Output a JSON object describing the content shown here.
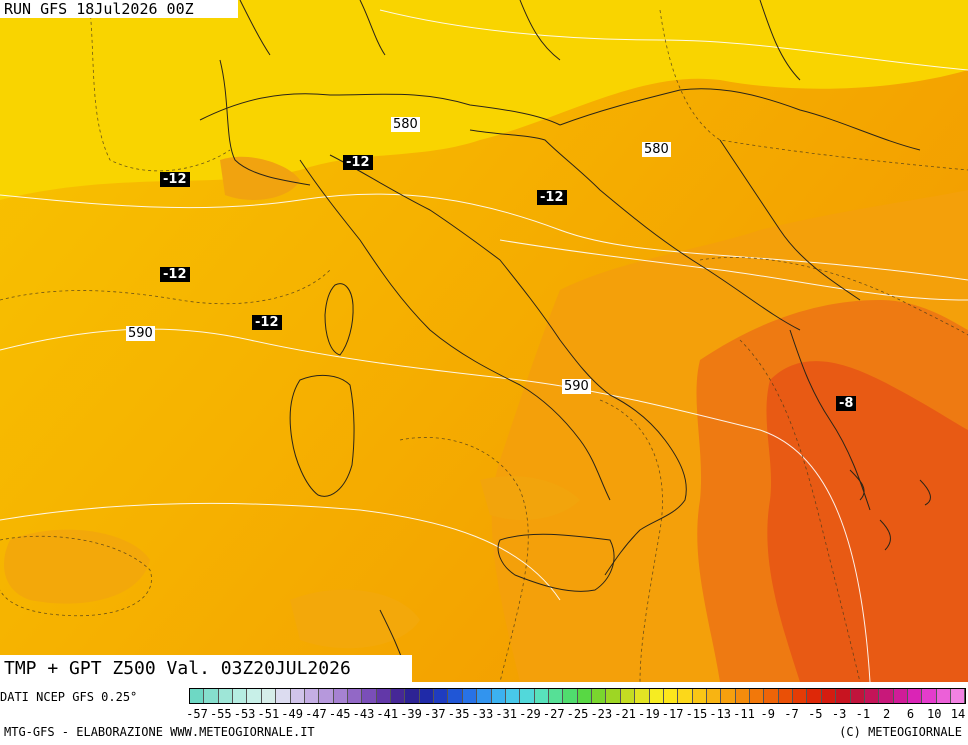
{
  "header": {
    "run": "RUN GFS 18Jul2026 00Z"
  },
  "title": "TMP + GPT Z500 Val. 03Z20JUL2026",
  "source": "DATI NCEP GFS 0.25°",
  "footer": {
    "left": "MTG-GFS - ELABORAZIONE WWW.METEOGIORNALE.IT",
    "right": "(C) METEOGIORNALE"
  },
  "gpt_labels": [
    "580",
    "580",
    "590",
    "590"
  ],
  "tmp_labels": [
    "-12",
    "-12",
    "-12",
    "-12",
    "-12",
    "-8"
  ],
  "legend": {
    "ticks": [
      "-57",
      "-55",
      "-53",
      "-51",
      "-49",
      "-47",
      "-45",
      "-43",
      "-41",
      "-39",
      "-37",
      "-35",
      "-33",
      "-31",
      "-29",
      "-27",
      "-25",
      "-23",
      "-21",
      "-19",
      "-17",
      "-15",
      "-13",
      "-11",
      "-9",
      "-7",
      "-5",
      "-3",
      "-1",
      "2",
      "6",
      "10",
      "14"
    ],
    "colors": [
      "#6ed8c4",
      "#86dfcd",
      "#9ee6d7",
      "#b6ede2",
      "#c8f0e8",
      "#d6ede9",
      "#dcdcf0",
      "#d0c4ea",
      "#c4aee4",
      "#b698dc",
      "#a682d2",
      "#9268c6",
      "#7a4fb8",
      "#6238a8",
      "#462896",
      "#2d2394",
      "#1f2aa8",
      "#1f3cc0",
      "#2056d6",
      "#2872e6",
      "#3294ee",
      "#3cb2f0",
      "#48c8ea",
      "#52d8da",
      "#58e2bc",
      "#56e096",
      "#50dc6e",
      "#58d844",
      "#7ad62e",
      "#9ed624",
      "#c4dc22",
      "#e2e424",
      "#f6ec22",
      "#fde61c",
      "#fcd81a",
      "#fac616",
      "#f8b412",
      "#f6a00e",
      "#f48c0c",
      "#f2780a",
      "#ee6408",
      "#ea5006",
      "#e43c06",
      "#de2808",
      "#d41c10",
      "#c81420",
      "#c0143c",
      "#c41458",
      "#c8187a",
      "#d01c98",
      "#da24b6",
      "#e43ccc",
      "#ec60d8",
      "#f282e2"
    ],
    "colormap_domain": "temperature 500 hPa (°C)"
  },
  "colors": {
    "warm": "#f7b000",
    "hot": "#ee5a10"
  }
}
